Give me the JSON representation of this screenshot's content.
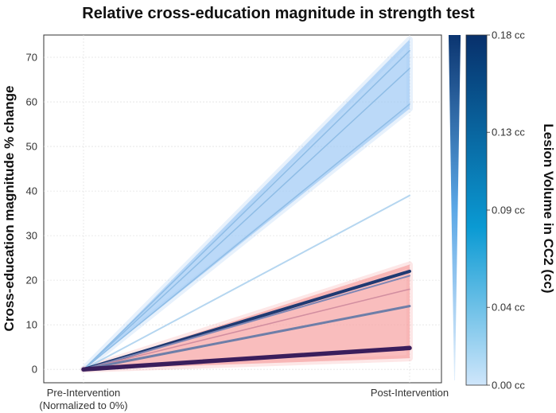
{
  "chart_data": {
    "type": "line",
    "title": "Relative cross-education magnitude in strength test",
    "xlabel": "",
    "ylabel": "Cross-education magnitude % change",
    "categories": [
      "Pre-Intervention\n(Normalized to 0%)",
      "Post-Intervention"
    ],
    "ylim": [
      -3,
      75
    ],
    "yticks": [
      0,
      10,
      20,
      30,
      40,
      50,
      60,
      70
    ],
    "grid": true,
    "bands": [
      {
        "group": "blue",
        "color": "#9ec9f5",
        "lower": [
          0,
          58.5
        ],
        "upper": [
          0,
          74
        ]
      },
      {
        "group": "red",
        "color": "#f7a1a1",
        "lower": [
          0,
          2.5
        ],
        "upper": [
          0,
          23.5
        ]
      }
    ],
    "series": [
      {
        "values": [
          0,
          71.5
        ],
        "color": "#8fbde6",
        "width": 1.5
      },
      {
        "values": [
          0,
          67.5
        ],
        "color": "#8fbde6",
        "width": 1.5
      },
      {
        "values": [
          0,
          59.5
        ],
        "color": "#8fbde6",
        "width": 1.5
      },
      {
        "values": [
          0,
          39
        ],
        "color": "#b5d6f0",
        "width": 2
      },
      {
        "values": [
          0,
          22
        ],
        "color": "#1f3a72",
        "width": 4
      },
      {
        "values": [
          0,
          21
        ],
        "color": "#7e86b4",
        "width": 2
      },
      {
        "values": [
          0,
          18
        ],
        "color": "#d28ea0",
        "width": 1.5
      },
      {
        "values": [
          0,
          14.2
        ],
        "color": "#6e7ea8",
        "width": 3
      },
      {
        "values": [
          0,
          4.8
        ],
        "color": "#3a1e5c",
        "width": 5.5
      }
    ],
    "legend": {
      "title": "Lesion Volume in CC2 (cc)",
      "position": "right",
      "range": [
        0,
        0.18
      ],
      "labels": [
        "0.18 cc",
        "0.13 cc",
        "0.09 cc",
        "0.04 cc",
        "0.00 cc"
      ],
      "label_values": [
        0.18,
        0.13,
        0.09,
        0.04,
        0.0
      ],
      "colors": {
        "low": "#cfe6fb",
        "mid": "#0a9ad3",
        "high": "#08306b"
      }
    }
  }
}
